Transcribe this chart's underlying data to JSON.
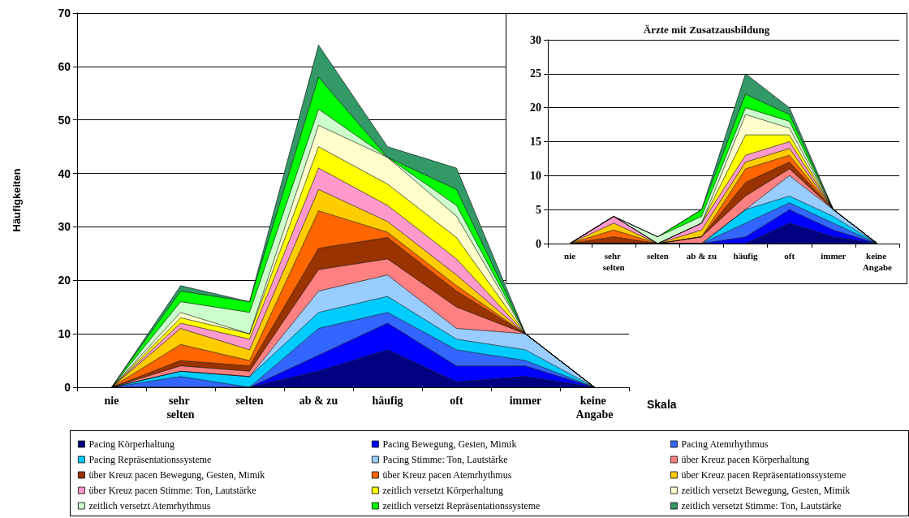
{
  "chart_data": [
    {
      "type": "area",
      "stacked": true,
      "xlabel": "Skala",
      "ylabel": "Häufigkeiten",
      "categories": [
        "nie",
        "sehr selten",
        "selten",
        "ab & zu",
        "häufig",
        "oft",
        "immer",
        "keine Angabe"
      ],
      "ylim": [
        0,
        70
      ],
      "yticks": [
        0,
        10,
        20,
        30,
        40,
        50,
        60,
        70
      ],
      "grid": "y",
      "legend": "bottom",
      "series": [
        {
          "name": "Pacing Körperhaltung",
          "color": "#000080",
          "values": [
            0,
            0,
            0,
            3,
            7,
            1,
            2,
            0
          ]
        },
        {
          "name": "Pacing Bewegung, Gesten, Mimik",
          "color": "#0000ff",
          "values": [
            0,
            0,
            0,
            3,
            5,
            3,
            2,
            0
          ]
        },
        {
          "name": "Pacing Atemrhythmus",
          "color": "#3366ff",
          "values": [
            0,
            2,
            0,
            5,
            2,
            3,
            1,
            0
          ]
        },
        {
          "name": "Pacing Repräsentationssysteme",
          "color": "#00ccff",
          "values": [
            0,
            1,
            2,
            3,
            3,
            2,
            2,
            0
          ]
        },
        {
          "name": "Pacing Stimme: Ton, Lautstärke",
          "color": "#99ccff",
          "values": [
            0,
            0,
            0,
            4,
            4,
            2,
            3,
            0
          ]
        },
        {
          "name": "über Kreuz pacen Körperhaltung",
          "color": "#ff8080",
          "values": [
            0,
            1,
            1,
            4,
            3,
            4,
            0,
            0
          ]
        },
        {
          "name": "über Kreuz pacen Bewegung, Gesten, Mimik",
          "color": "#993300",
          "values": [
            0,
            1,
            1,
            4,
            4,
            3,
            0,
            0
          ]
        },
        {
          "name": "über Kreuz pacen Atemrhythmus",
          "color": "#ff6600",
          "values": [
            0,
            3,
            1,
            7,
            1,
            1,
            0,
            0
          ]
        },
        {
          "name": "über Kreuz pacen Repräsentationssysteme",
          "color": "#ffcc00",
          "values": [
            0,
            3,
            2,
            4,
            2,
            2,
            0,
            0
          ]
        },
        {
          "name": "über Kreuz pacen Stimme: Ton, Lautstärke",
          "color": "#ff99cc",
          "values": [
            0,
            1,
            2,
            4,
            3,
            3,
            0,
            0
          ]
        },
        {
          "name": "zeitlich versetzt Körperhaltung",
          "color": "#ffff00",
          "values": [
            0,
            1,
            1,
            4,
            4,
            4,
            0,
            0
          ]
        },
        {
          "name": "zeitlich versetzt Bewegung, Gesten, Mimik",
          "color": "#ffffcc",
          "values": [
            0,
            1,
            0,
            4,
            5,
            4,
            0,
            0
          ]
        },
        {
          "name": "zeitlich versetzt Atemrhythmus",
          "color": "#ccffcc",
          "values": [
            0,
            2,
            4,
            3,
            0,
            2,
            0,
            0
          ]
        },
        {
          "name": "zeitlich versetzt Repräsentationssysteme",
          "color": "#00ff00",
          "values": [
            0,
            2,
            2,
            6,
            0,
            3,
            0,
            0
          ]
        },
        {
          "name": "zeitlich versetzt Stimme: Ton, Lautstärke",
          "color": "#339966",
          "values": [
            0,
            1,
            0,
            6,
            2,
            4,
            0,
            0
          ]
        }
      ]
    },
    {
      "type": "area",
      "stacked": true,
      "title": "Ärzte mit Zusatzausbildung",
      "categories": [
        "nie",
        "sehr selten",
        "selten",
        "ab & zu",
        "häufig",
        "oft",
        "immer",
        "keine Angabe"
      ],
      "ylim": [
        0,
        30
      ],
      "yticks": [
        0,
        5,
        10,
        15,
        20,
        25,
        30
      ],
      "grid": "y",
      "series": [
        {
          "color": "#000080",
          "values": [
            0,
            0,
            0,
            0,
            0,
            3,
            1,
            0
          ]
        },
        {
          "color": "#0000ff",
          "values": [
            0,
            0,
            0,
            0,
            1,
            2,
            1,
            0
          ]
        },
        {
          "color": "#3366ff",
          "values": [
            0,
            0,
            0,
            0,
            2,
            1,
            1,
            0
          ]
        },
        {
          "color": "#00ccff",
          "values": [
            0,
            0,
            0,
            0,
            2,
            1,
            1,
            0
          ]
        },
        {
          "color": "#99ccff",
          "values": [
            0,
            0,
            0,
            0,
            0,
            3,
            1,
            0
          ]
        },
        {
          "color": "#ff8080",
          "values": [
            0,
            0,
            0,
            1,
            2,
            1,
            0,
            0
          ]
        },
        {
          "color": "#993300",
          "values": [
            0,
            1,
            0,
            0,
            2,
            1,
            0,
            0
          ]
        },
        {
          "color": "#ff6600",
          "values": [
            0,
            1,
            0,
            0,
            2,
            1,
            0,
            0
          ]
        },
        {
          "color": "#ffcc00",
          "values": [
            0,
            1,
            0,
            1,
            1,
            1,
            0,
            0
          ]
        },
        {
          "color": "#ff99cc",
          "values": [
            0,
            1,
            0,
            1,
            1,
            1,
            0,
            0
          ]
        },
        {
          "color": "#ffff00",
          "values": [
            0,
            0,
            0,
            0,
            3,
            1,
            0,
            0
          ]
        },
        {
          "color": "#ffffcc",
          "values": [
            0,
            0,
            0,
            0,
            3,
            1,
            0,
            0
          ]
        },
        {
          "color": "#ccffcc",
          "values": [
            0,
            0,
            1,
            1,
            1,
            1,
            0,
            0
          ]
        },
        {
          "color": "#00ff00",
          "values": [
            0,
            0,
            0,
            1,
            2,
            1,
            0,
            0
          ]
        },
        {
          "color": "#339966",
          "values": [
            0,
            0,
            0,
            0,
            3,
            1,
            0,
            0
          ]
        }
      ]
    }
  ]
}
